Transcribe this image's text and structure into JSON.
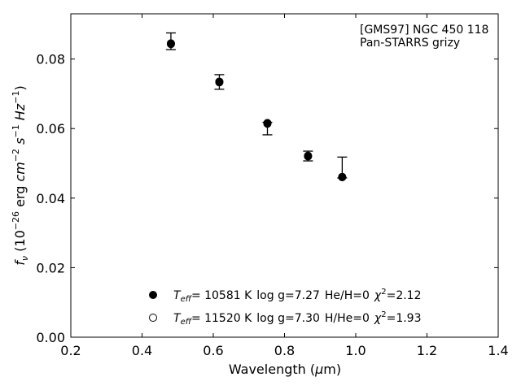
{
  "chart_data": {
    "type": "scatter",
    "xlabel_prefix": "Wavelength (",
    "xlabel_symbol": "μ",
    "xlabel_suffix": "m)",
    "ylabel": "f_ν (10^-26 erg cm^-2 s^-1 Hz^-1)",
    "xlim": [
      0.2,
      1.4
    ],
    "ylim": [
      0.0,
      0.093
    ],
    "xticks": [
      0.2,
      0.4,
      0.6,
      0.8,
      1.0,
      1.2,
      1.4
    ],
    "xtick_labels": [
      "0.2",
      "0.4",
      "0.6",
      "0.8",
      "1.0",
      "1.2",
      "1.4"
    ],
    "yticks": [
      0.0,
      0.02,
      0.04,
      0.06,
      0.08
    ],
    "ytick_labels": [
      "0.00",
      "0.02",
      "0.04",
      "0.06",
      "0.08"
    ],
    "grid": false,
    "annotation": [
      "[GMS97] NGC 450 118",
      "Pan-STARRS grizy"
    ],
    "observed": [
      {
        "x": 0.481,
        "y": 0.0849,
        "yerr_low": 0.0827,
        "yerr_high": 0.0875
      },
      {
        "x": 0.617,
        "y": 0.0733,
        "yerr_low": 0.0713,
        "yerr_high": 0.0755
      },
      {
        "x": 0.752,
        "y": 0.06,
        "yerr_low": 0.0582,
        "yerr_high": 0.0618
      },
      {
        "x": 0.866,
        "y": 0.0521,
        "yerr_low": 0.0507,
        "yerr_high": 0.0535
      },
      {
        "x": 0.962,
        "y": 0.0466,
        "yerr_low": 0.0458,
        "yerr_high": 0.0518
      }
    ],
    "series": [
      {
        "marker": "filled",
        "teff_val": "= 10581 K",
        "params": "log g=7.27",
        "comp": "He/H=0",
        "chi_val": "=2.12",
        "x": [
          0.481,
          0.617,
          0.752,
          0.866,
          0.962
        ],
        "y": [
          0.0843,
          0.0733,
          0.0614,
          0.052,
          0.046
        ]
      },
      {
        "marker": "open",
        "teff_val": "= 11520 K",
        "params": "log g=7.30",
        "comp": "H/He=0",
        "chi_val": "=1.93",
        "x": [
          0.481,
          0.617,
          0.752,
          0.866,
          0.962
        ],
        "y": [
          0.0845,
          0.0735,
          0.0616,
          0.0522,
          0.0461
        ]
      }
    ]
  }
}
